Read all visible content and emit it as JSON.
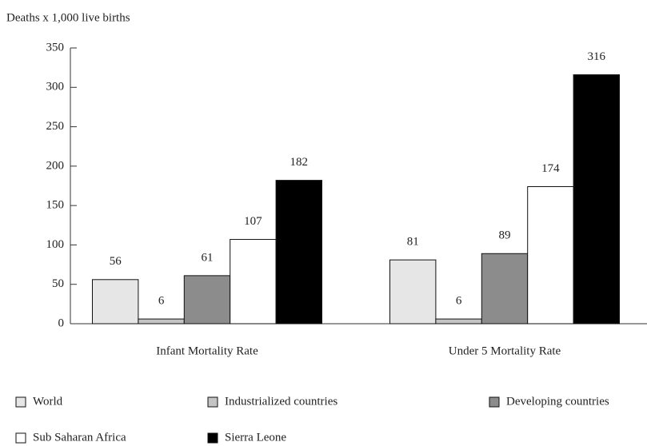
{
  "chart_data": {
    "type": "bar",
    "y_axis_label": "Deaths x 1,000 live births",
    "categories": [
      "Infant Mortality Rate",
      "Under 5 Mortality Rate"
    ],
    "series": [
      {
        "name": "World",
        "color": "#e6e6e6",
        "values": [
          56,
          81
        ]
      },
      {
        "name": "Industrialized countries",
        "color": "#c4c4c4",
        "values": [
          6,
          6
        ]
      },
      {
        "name": "Developing countries",
        "color": "#8c8c8c",
        "values": [
          61,
          89
        ]
      },
      {
        "name": "Sub Saharan Africa",
        "color": "#ffffff",
        "values": [
          107,
          174
        ]
      },
      {
        "name": "Sierra Leone",
        "color": "#000000",
        "values": [
          182,
          316
        ]
      }
    ],
    "ylim": [
      0,
      350
    ],
    "yticks": [
      0,
      50,
      100,
      150,
      200,
      250,
      300,
      350
    ],
    "legend": "bottom"
  }
}
